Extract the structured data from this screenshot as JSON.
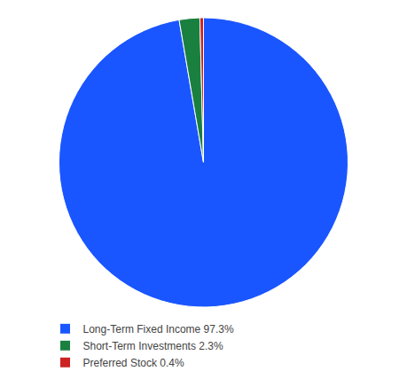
{
  "chart_data": {
    "type": "pie",
    "categories": [
      "Long-Term Fixed Income 97.3%",
      "Short-Term Investments 2.3%",
      "Preferred Stock 0.4%"
    ],
    "values": [
      97.3,
      2.3,
      0.4
    ],
    "colors": [
      "#1a56ff",
      "#1a8040",
      "#cc2222"
    ],
    "legend": "bottom"
  }
}
